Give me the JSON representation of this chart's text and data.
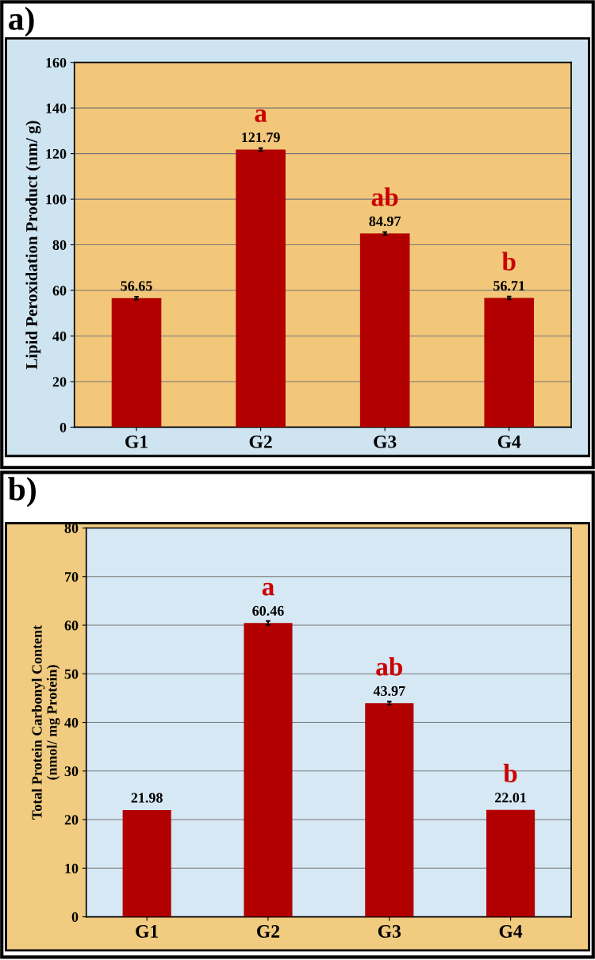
{
  "chart_data": [
    {
      "type": "bar",
      "title": "a)",
      "ylabel": "Lipid Peroxidation Product (nm/ g)",
      "categories": [
        "G1",
        "G2",
        "G3",
        "G4"
      ],
      "values": [
        56.65,
        121.79,
        84.97,
        56.71
      ],
      "errors": [
        0.6,
        0.6,
        0.6,
        0.6
      ],
      "color": "#b20000",
      "ylim": [
        0,
        160
      ],
      "yticks": [
        0,
        20,
        40,
        60,
        80,
        100,
        120,
        140,
        160
      ],
      "grid": "y",
      "data_labels": true,
      "annotations": [
        {
          "text": "a",
          "x": "G2",
          "y": 121.79
        },
        {
          "text": "ab",
          "x": "G3",
          "y": 84.97
        },
        {
          "text": "b",
          "x": "G4",
          "y": 56.71
        }
      ]
    },
    {
      "type": "bar",
      "title": "b)",
      "ylabel": "Total Protein Carbonyl Content\n(nmol/ mg Protein)",
      "categories": [
        "G1",
        "G2",
        "G3",
        "G4"
      ],
      "values": [
        21.98,
        60.46,
        43.97,
        22.01
      ],
      "errors": [
        null,
        0.4,
        0.3,
        null
      ],
      "color": "#b20000",
      "ylim": [
        0,
        80
      ],
      "yticks": [
        0,
        10,
        20,
        30,
        40,
        50,
        60,
        70,
        80
      ],
      "grid": "y",
      "data_labels": true,
      "annotations": [
        {
          "text": "a",
          "x": "G2",
          "y": 60.46
        },
        {
          "text": "ab",
          "x": "G3",
          "y": 43.97
        },
        {
          "text": "b",
          "x": "G4",
          "y": 22.01
        }
      ]
    }
  ]
}
